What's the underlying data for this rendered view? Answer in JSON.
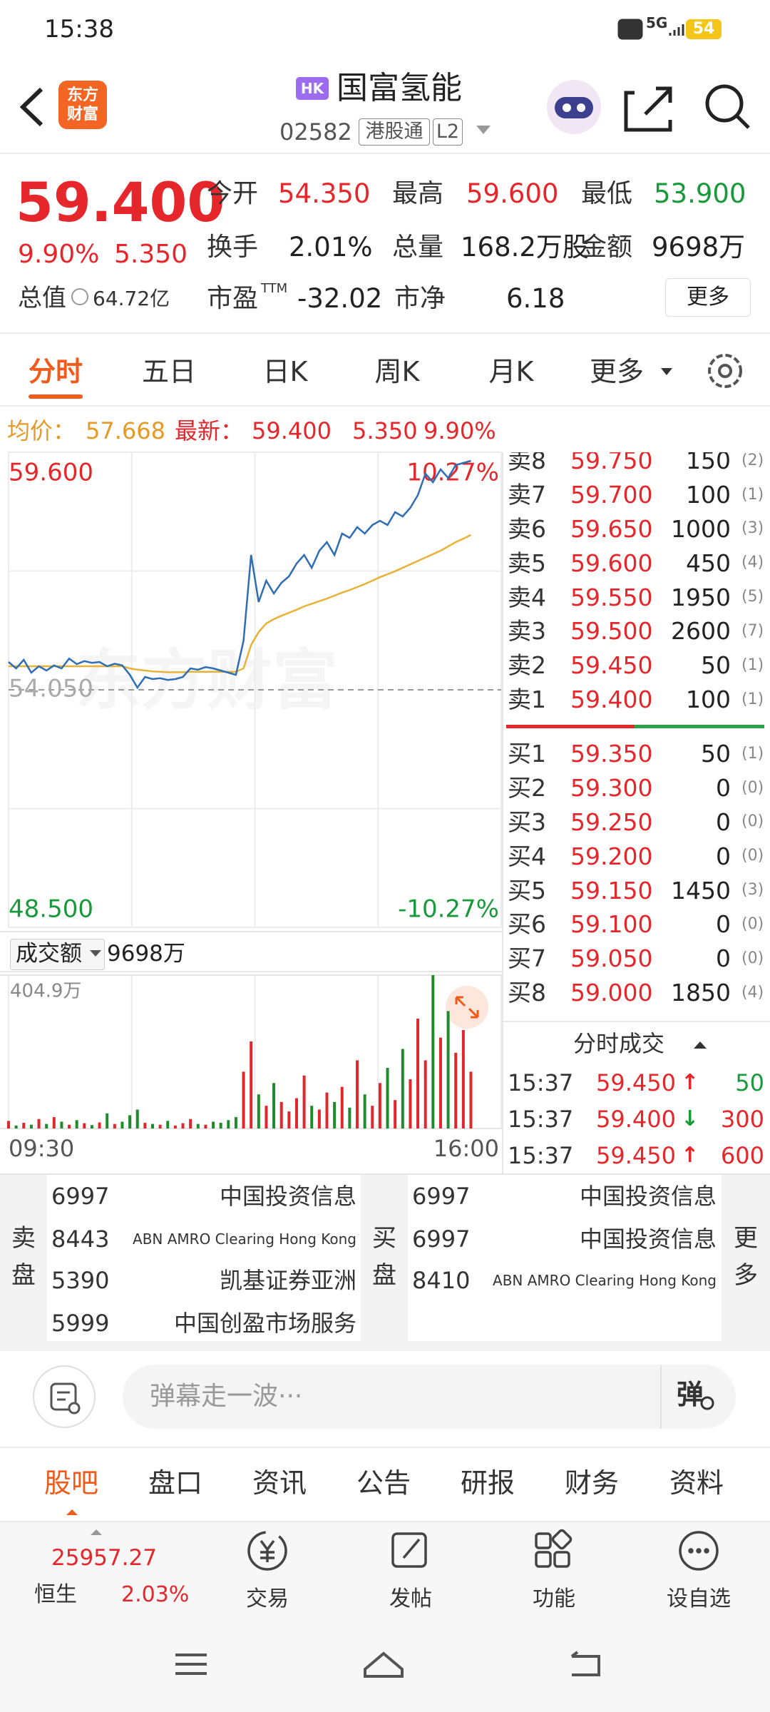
{
  "status_bar": {
    "time": "15:38",
    "network": "5G",
    "battery": "54"
  },
  "header": {
    "logo": [
      "东方",
      "财富"
    ],
    "market": "HK",
    "name": "国富氢能",
    "code": "02582",
    "tag": "港股通",
    "level": "L2"
  },
  "quote": {
    "price": "59.400",
    "change_pct": "9.90%",
    "change": "5.350",
    "market_cap_label": "总值",
    "market_cap": "64.72亿",
    "fields": [
      {
        "label": "今开",
        "value": "54.350",
        "color": "#e5262b"
      },
      {
        "label": "最高",
        "value": "59.600",
        "color": "#e5262b"
      },
      {
        "label": "最低",
        "value": "53.900",
        "color": "#189a3b"
      },
      {
        "label": "换手",
        "value": "2.01%",
        "color": "#222222"
      },
      {
        "label": "总量",
        "value": "168.2万股",
        "color": "#222222"
      },
      {
        "label": "金额",
        "value": "9698万",
        "color": "#222222"
      },
      {
        "label": "市盈",
        "sup": "TTM",
        "value": "-32.02",
        "color": "#222222"
      },
      {
        "label": "市净",
        "value": "6.18",
        "color": "#222222"
      }
    ],
    "more": "更多"
  },
  "tabs": {
    "items": [
      "分时",
      "五日",
      "日K",
      "周K",
      "月K",
      "更多"
    ],
    "active": 0
  },
  "summary": {
    "avg_label": "均价：",
    "avg": "57.668",
    "last_label": "最新：",
    "last": "59.400",
    "change": "5.350",
    "change_pct": "9.90%"
  },
  "intraday": {
    "watermark": "东方财富",
    "ylim": [
      48.5,
      59.6
    ],
    "yticks": [
      {
        "value": 59.6,
        "label": "59.600"
      },
      {
        "value": 54.05,
        "label": "54.050"
      },
      {
        "value": 48.5,
        "label": "48.500"
      }
    ],
    "pct_high": "10.27%",
    "pct_low": "-10.27%",
    "price_color": "#2f6db5",
    "avg_color": "#e8b237",
    "price": [
      54.7,
      54.55,
      54.75,
      54.45,
      54.6,
      54.5,
      54.62,
      54.55,
      54.78,
      54.65,
      54.72,
      54.68,
      54.7,
      54.6,
      54.66,
      54.62,
      54.4,
      54.1,
      54.35,
      54.3,
      54.32,
      54.28,
      54.3,
      54.35,
      54.55,
      54.52,
      54.58,
      54.55,
      54.5,
      54.45,
      54.4,
      55.2,
      57.2,
      56.1,
      56.6,
      56.3,
      56.55,
      56.7,
      57.0,
      57.2,
      56.9,
      57.3,
      57.5,
      57.2,
      57.7,
      57.6,
      57.85,
      57.7,
      57.9,
      58.0,
      57.9,
      58.2,
      58.1,
      58.3,
      58.6,
      59.1,
      58.9,
      59.2,
      59.0,
      59.3,
      59.35,
      59.4,
      null,
      null,
      null,
      null
    ],
    "avg": [
      54.6,
      54.6,
      54.6,
      54.6,
      54.6,
      54.6,
      54.6,
      54.6,
      54.6,
      54.6,
      54.6,
      54.6,
      54.6,
      54.6,
      54.6,
      54.6,
      54.55,
      54.52,
      54.5,
      54.48,
      54.47,
      54.46,
      54.46,
      54.46,
      54.47,
      54.47,
      54.47,
      54.47,
      54.47,
      54.47,
      54.47,
      54.55,
      55.1,
      55.4,
      55.6,
      55.7,
      55.78,
      55.85,
      55.92,
      56.0,
      56.06,
      56.12,
      56.18,
      56.25,
      56.32,
      56.38,
      56.45,
      56.52,
      56.6,
      56.68,
      56.75,
      56.82,
      56.9,
      56.98,
      57.06,
      57.14,
      57.22,
      57.3,
      57.4,
      57.5,
      57.58,
      57.668,
      null,
      null,
      null,
      null
    ],
    "volume_label": "成交额",
    "volume_total": "9698万",
    "volume_max": {
      "value": 404.9,
      "label": "404.9万"
    },
    "volume": [
      20,
      8,
      15,
      10,
      25,
      12,
      30,
      18,
      10,
      22,
      14,
      9,
      16,
      40,
      12,
      18,
      35,
      50,
      15,
      12,
      10,
      20,
      8,
      14,
      25,
      12,
      10,
      18,
      15,
      22,
      30,
      150,
      230,
      90,
      60,
      120,
      70,
      45,
      80,
      140,
      60,
      50,
      95,
      70,
      110,
      55,
      180,
      90,
      60,
      120,
      160,
      75,
      210,
      130,
      290,
      180,
      404.9,
      240,
      310,
      200,
      260,
      150,
      null,
      null,
      null,
      null
    ],
    "up_color": "#e0272b",
    "down_color": "#1f8a2e",
    "time_start": "09:30",
    "time_end": "16:00"
  },
  "order_book": {
    "asks": [
      {
        "label": "卖8",
        "price": "59.750",
        "qty": "150",
        "count": "(2)"
      },
      {
        "label": "卖7",
        "price": "59.700",
        "qty": "100",
        "count": "(1)"
      },
      {
        "label": "卖6",
        "price": "59.650",
        "qty": "1000",
        "count": "(3)"
      },
      {
        "label": "卖5",
        "price": "59.600",
        "qty": "450",
        "count": "(4)"
      },
      {
        "label": "卖4",
        "price": "59.550",
        "qty": "1950",
        "count": "(5)"
      },
      {
        "label": "卖3",
        "price": "59.500",
        "qty": "2600",
        "count": "(7)"
      },
      {
        "label": "卖2",
        "price": "59.450",
        "qty": "50",
        "count": "(1)"
      },
      {
        "label": "卖1",
        "price": "59.400",
        "qty": "100",
        "count": "(1)"
      }
    ],
    "bids": [
      {
        "label": "买1",
        "price": "59.350",
        "qty": "50",
        "count": "(1)"
      },
      {
        "label": "买2",
        "price": "59.300",
        "qty": "0",
        "count": "(0)"
      },
      {
        "label": "买3",
        "price": "59.250",
        "qty": "0",
        "count": "(0)"
      },
      {
        "label": "买4",
        "price": "59.200",
        "qty": "0",
        "count": "(0)"
      },
      {
        "label": "买5",
        "price": "59.150",
        "qty": "1450",
        "count": "(3)"
      },
      {
        "label": "买6",
        "price": "59.100",
        "qty": "0",
        "count": "(0)"
      },
      {
        "label": "买7",
        "price": "59.050",
        "qty": "0",
        "count": "(0)"
      },
      {
        "label": "买8",
        "price": "59.000",
        "qty": "1850",
        "count": "(4)"
      }
    ]
  },
  "trades": {
    "title": "分时成交",
    "rows": [
      {
        "time": "15:37",
        "price": "59.450",
        "arrow": "↑",
        "arrow_color": "#e5262b",
        "qty": "50",
        "qty_color": "#189a3b"
      },
      {
        "time": "15:37",
        "price": "59.400",
        "arrow": "↓",
        "arrow_color": "#189a3b",
        "qty": "300",
        "qty_color": "#e5262b"
      },
      {
        "time": "15:37",
        "price": "59.450",
        "arrow": "↑",
        "arrow_color": "#e5262b",
        "qty": "600",
        "qty_color": "#e5262b"
      }
    ]
  },
  "brokers": {
    "sell_label": [
      "卖",
      "盘"
    ],
    "sell": [
      {
        "id": "6997",
        "name": "中国投资信息"
      },
      {
        "id": "8443",
        "name": "ABN AMRO Clearing Hong Kong"
      },
      {
        "id": "5390",
        "name": "凯基证券亚洲"
      },
      {
        "id": "5999",
        "name": "中国创盈市场服务"
      }
    ],
    "buy_label": [
      "买",
      "盘"
    ],
    "buy": [
      {
        "id": "6997",
        "name": "中国投资信息"
      },
      {
        "id": "6997",
        "name": "中国投资信息"
      },
      {
        "id": "8410",
        "name": "ABN AMRO Clearing Hong Kong"
      }
    ],
    "more": [
      "更",
      "多"
    ]
  },
  "comment": {
    "placeholder": "弹幕走一波···",
    "button": "弹"
  },
  "nav": {
    "items": [
      "股吧",
      "盘口",
      "资讯",
      "公告",
      "研报",
      "财务",
      "资料"
    ],
    "active": 0
  },
  "bottom_bar": {
    "index_value": "25957.27",
    "index_name": "恒生",
    "index_change": "2.03%",
    "items": [
      "交易",
      "发帖",
      "功能",
      "设自选"
    ]
  }
}
